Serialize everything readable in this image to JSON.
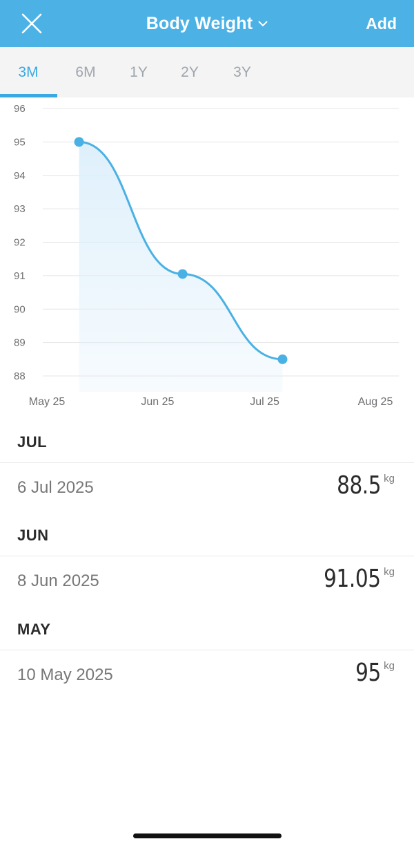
{
  "header": {
    "title": "Body Weight",
    "add_label": "Add",
    "close_icon": "close-icon",
    "dropdown_icon": "chevron-down-icon",
    "color": "#4cb2e6"
  },
  "tabs": [
    {
      "label": "3M",
      "active": true
    },
    {
      "label": "6M",
      "active": false
    },
    {
      "label": "1Y",
      "active": false
    },
    {
      "label": "2Y",
      "active": false
    },
    {
      "label": "3Y",
      "active": false
    }
  ],
  "chart_data": {
    "type": "area",
    "y_ticks": [
      96,
      95,
      94,
      93,
      92,
      91,
      90,
      89,
      88
    ],
    "ylim": [
      88,
      96
    ],
    "x_ticks": [
      "May 25",
      "Jun 25",
      "Jul 25",
      "Aug 25"
    ],
    "xlim": [
      "2025-05-01",
      "2025-08-01"
    ],
    "series": [
      {
        "points": [
          {
            "x": "2025-05-10",
            "y": 95
          },
          {
            "x": "2025-06-08",
            "y": 91.05
          },
          {
            "x": "2025-07-06",
            "y": 88.5
          }
        ]
      }
    ],
    "grid": true,
    "line_color": "#4ab1e4",
    "fill_color": "#dff0fb"
  },
  "entries": [
    {
      "month": "JUL",
      "date": "6 Jul 2025",
      "value": "88.5",
      "unit": "kg"
    },
    {
      "month": "JUN",
      "date": "8 Jun 2025",
      "value": "91.05",
      "unit": "kg"
    },
    {
      "month": "MAY",
      "date": "10 May 2025",
      "value": "95",
      "unit": "kg"
    }
  ]
}
